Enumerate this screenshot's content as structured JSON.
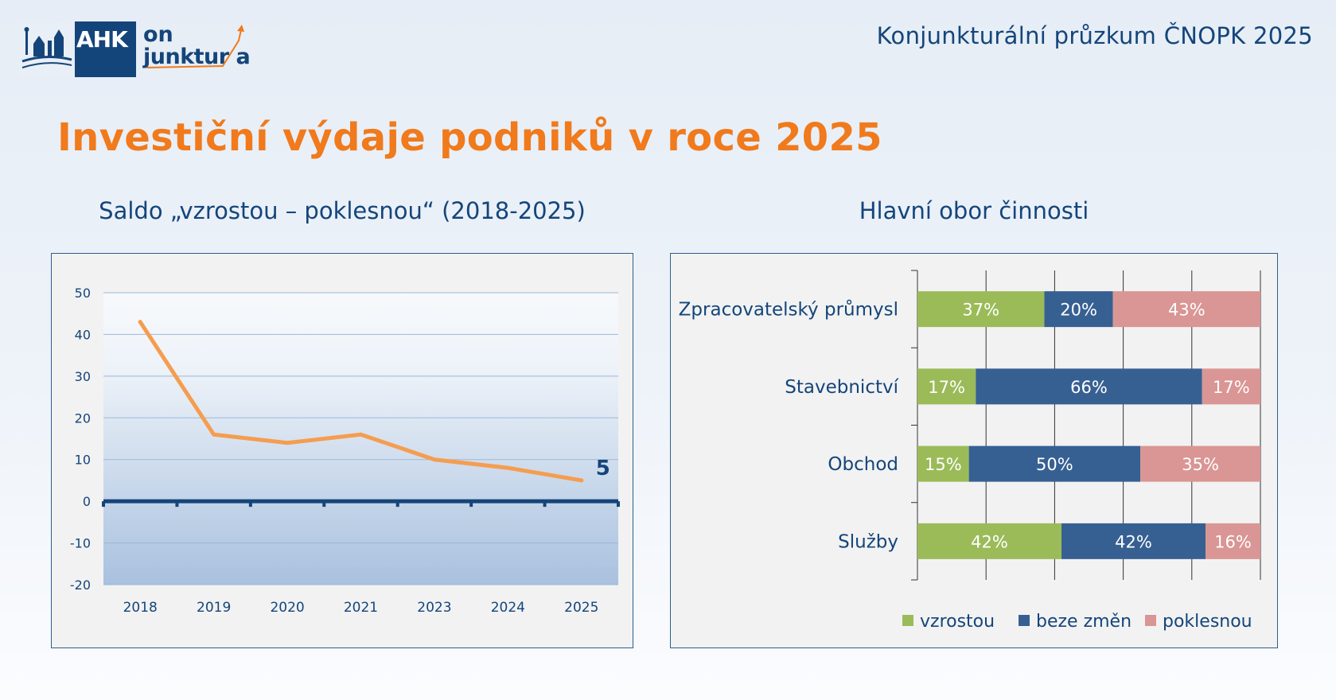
{
  "header": {
    "logo_ahk": "AHK",
    "logo_on": "on",
    "logo_junktura": "junktur a",
    "title": "Konjunkturální průzkum ČNOPK 2025"
  },
  "page_title": "Investiční výdaje podniků v roce 2025",
  "colors": {
    "navy": "#14457a",
    "orange": "#f07a1c",
    "line": "#f59d4f",
    "green": "#9bbb59",
    "blue": "#376092",
    "pink": "#d99694"
  },
  "chart_data": [
    {
      "type": "line",
      "title": "Saldo „vzrostou – poklesnou“ (2018-2025)",
      "categories": [
        "2018",
        "2019",
        "2020",
        "2021",
        "2023",
        "2024",
        "2025"
      ],
      "values": [
        43,
        16,
        14,
        16,
        10,
        8,
        5
      ],
      "end_label": "5",
      "yticks": [
        "50",
        "40",
        "30",
        "20",
        "10",
        "0",
        "-10",
        "-20"
      ],
      "ylim": [
        -20,
        50
      ],
      "grid": true,
      "legend": "none"
    },
    {
      "type": "bar",
      "orientation": "horizontal",
      "stacked": true,
      "title": "Hlavní obor činnosti",
      "categories": [
        "Zpracovatelský průmysl",
        "Stavebnictví",
        "Obchod",
        "Služby"
      ],
      "series": [
        {
          "name": "vzrostou",
          "values": [
            37,
            17,
            15,
            42
          ],
          "labels": [
            "37%",
            "17%",
            "15%",
            "42%"
          ]
        },
        {
          "name": "beze změn",
          "values": [
            20,
            66,
            50,
            42
          ],
          "labels": [
            "20%",
            "66%",
            "50%",
            "42%"
          ]
        },
        {
          "name": "poklesnou",
          "values": [
            43,
            17,
            35,
            16
          ],
          "labels": [
            "43%",
            "17%",
            "35%",
            "16%"
          ]
        }
      ],
      "xlim": [
        0,
        100
      ],
      "grid": true,
      "legend": "bottom-right"
    }
  ]
}
